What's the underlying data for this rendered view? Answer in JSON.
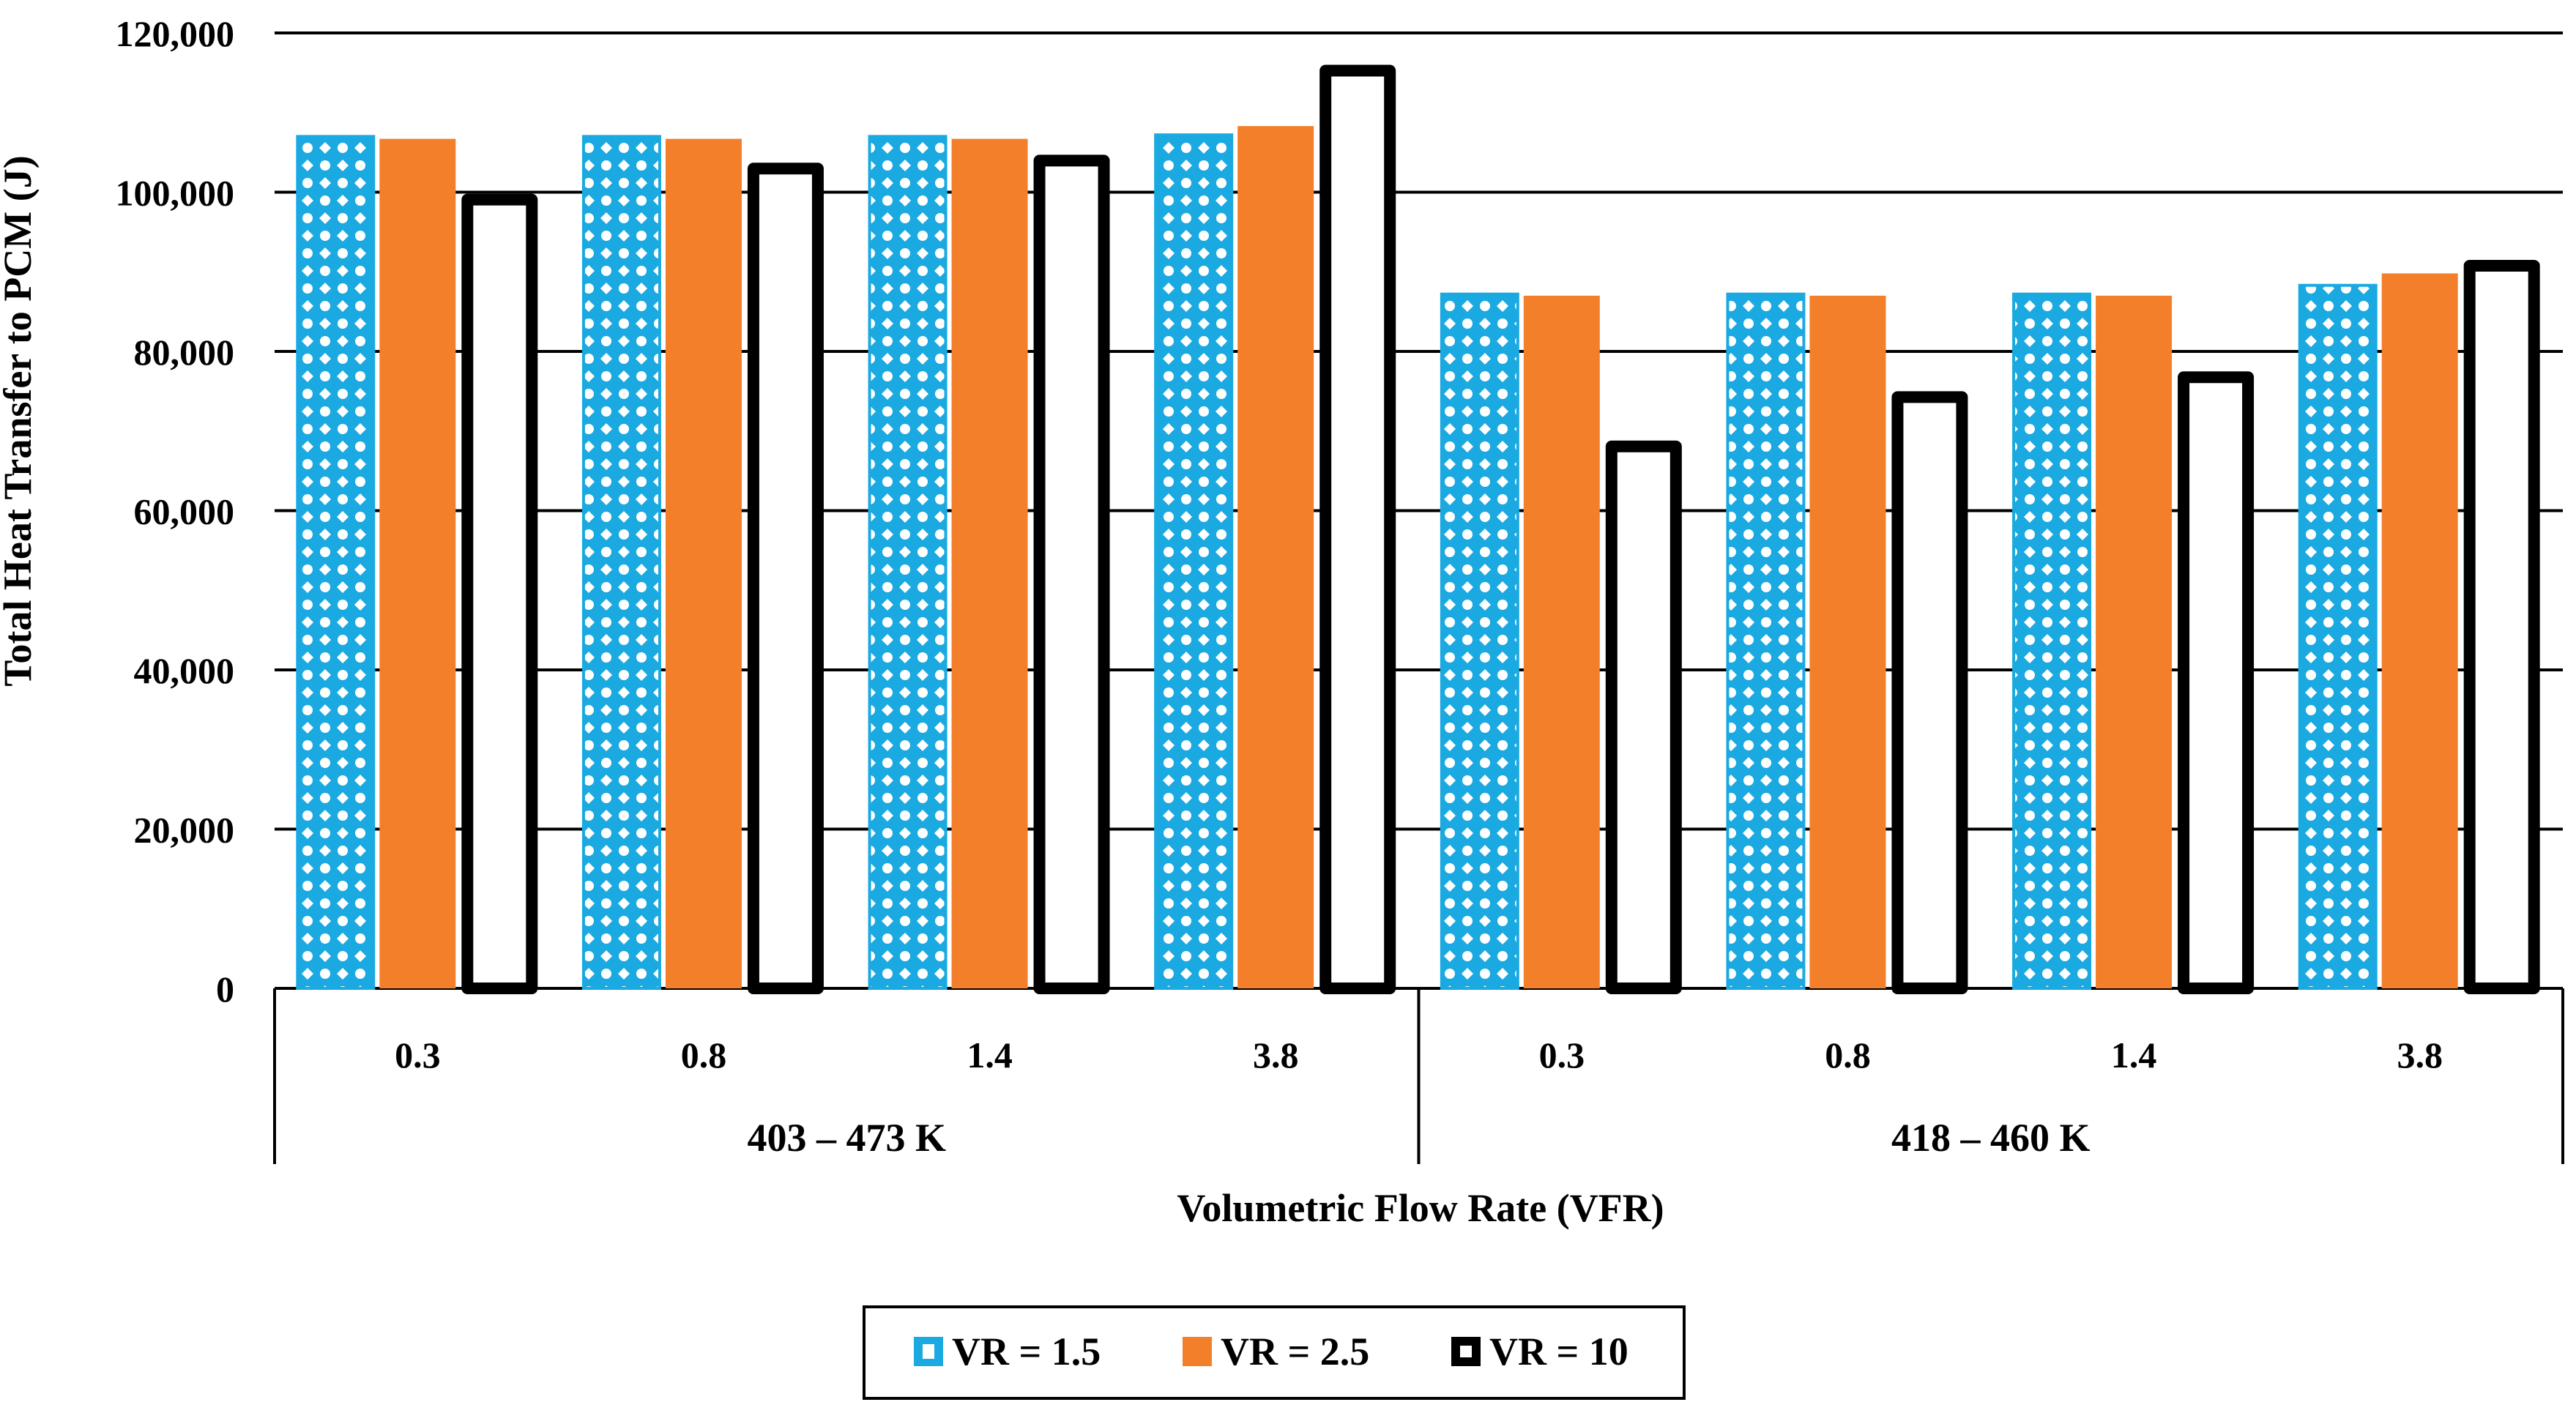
{
  "chart_data": {
    "type": "bar",
    "title": "",
    "ylabel": "Total Heat Transfer to PCM (J)",
    "xlabel": "Volumetric Flow Rate (VFR)",
    "ylim": [
      0,
      120000
    ],
    "yticks": [
      0,
      20000,
      40000,
      60000,
      80000,
      100000,
      120000
    ],
    "ytick_labels": [
      "0",
      "20,000",
      "40,000",
      "60,000",
      "80,000",
      "100,000",
      "120,000"
    ],
    "grid": true,
    "legend_position": "bottom",
    "groups": [
      {
        "label": "403 – 473 K",
        "categories": [
          "0.3",
          "0.8",
          "1.4",
          "3.8"
        ]
      },
      {
        "label": "418 – 460 K",
        "categories": [
          "0.3",
          "0.8",
          "1.4",
          "3.8"
        ]
      }
    ],
    "series": [
      {
        "name": "VR = 1.5",
        "color": "#1ba9e1",
        "pattern": "white-cross-on-blue",
        "values": [
          107000,
          107000,
          107000,
          107200,
          87200,
          87200,
          87200,
          88300
        ]
      },
      {
        "name": "VR = 2.5",
        "color": "#f47f2a",
        "pattern": "solid",
        "values": [
          106700,
          106700,
          106700,
          108300,
          87000,
          87000,
          87000,
          89800
        ]
      },
      {
        "name": "VR = 10",
        "color": "#000000",
        "pattern": "hollow-black-outline",
        "values": [
          99800,
          103700,
          104700,
          116000,
          68800,
          75000,
          77500,
          91500
        ]
      }
    ]
  }
}
